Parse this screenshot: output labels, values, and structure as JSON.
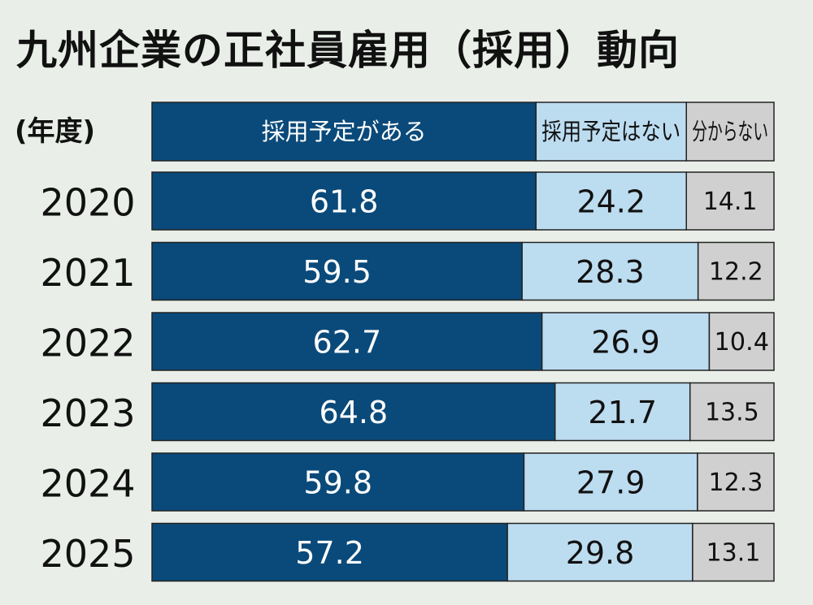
{
  "title": "九州企業の正社員雇用（採用）動向",
  "chart_data": {
    "type": "bar",
    "orientation": "horizontal",
    "stacked": true,
    "unit": "%",
    "category_header": "(年度)",
    "categories": [
      "2020",
      "2021",
      "2022",
      "2023",
      "2024",
      "2025"
    ],
    "series": [
      {
        "name": "採用予定がある",
        "values": [
          61.8,
          59.5,
          62.7,
          64.8,
          59.8,
          57.2
        ],
        "color": "#0a4a7a",
        "text_color": "#ffffff"
      },
      {
        "name": "採用予定はない",
        "values": [
          24.2,
          28.3,
          26.9,
          21.7,
          27.9,
          29.8
        ],
        "color": "#bcdcf0",
        "text_color": "#111111"
      },
      {
        "name": "分からない",
        "values": [
          14.1,
          12.2,
          10.4,
          13.5,
          12.3,
          13.1
        ],
        "color": "#d0d0d0",
        "text_color": "#111111"
      }
    ],
    "legend_position": "top",
    "grid": false
  }
}
